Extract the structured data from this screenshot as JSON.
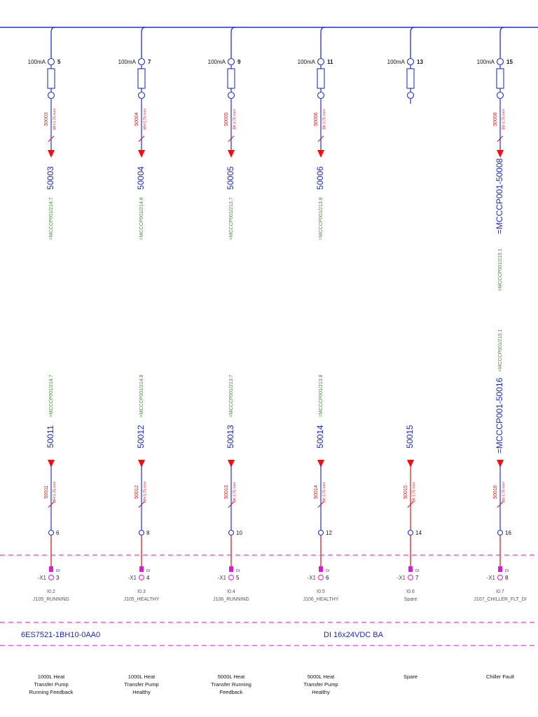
{
  "module": {
    "part_number": "6ES7521-1BH10-0AA0",
    "type": "DI 16x24VDC BA"
  },
  "channels": [
    {
      "fuse_rating": "100mA",
      "fuse_terminal": "5",
      "has_supply_path": true,
      "wire_top": "50003",
      "wire_top_color": "WH",
      "wire_top_cs": "0,75 mm²",
      "cable_top_label": "50003",
      "cable_top_ref": "=MCCCP001/214.7",
      "cable_bottom_label": "50011",
      "cable_bottom_ref": "=MCCCP001/214.7",
      "wire_bottom": "50011",
      "wire_bottom_color": "WH",
      "wire_bottom_cs": "0,75 mm²",
      "terminal": "6",
      "x1_label": "-X1",
      "x1_pin": "3",
      "io": "I0.2",
      "tag": "J105_RUNNING",
      "desc": "1000L Heat\nTransfer Pump\nRunning Feedback"
    },
    {
      "fuse_rating": "100mA",
      "fuse_terminal": "7",
      "has_supply_path": true,
      "wire_top": "50004",
      "wire_top_color": "WH",
      "wire_top_cs": "0,75 mm²",
      "cable_top_label": "50004",
      "cable_top_ref": "=MCCCP001/214.8",
      "cable_bottom_label": "50012",
      "cable_bottom_ref": "=MCCCP001/214.8",
      "wire_bottom": "50012",
      "wire_bottom_color": "WH",
      "wire_bottom_cs": "0,75 mm²",
      "terminal": "8",
      "x1_label": "-X1",
      "x1_pin": "4",
      "io": "I0.3",
      "tag": "J105_HEALTHY",
      "desc": "1000L Heat\nTransfer Pump\nHealthy"
    },
    {
      "fuse_rating": "100mA",
      "fuse_terminal": "9",
      "has_supply_path": true,
      "wire_top": "50005",
      "wire_top_color": "BK",
      "wire_top_cs": "0,75 mm²",
      "cable_top_label": "50005",
      "cable_top_ref": "=MCCCP001/213.7",
      "cable_bottom_label": "50013",
      "cable_bottom_ref": "=MCCCP001/213.7",
      "wire_bottom": "50013",
      "wire_bottom_color": "BK",
      "wire_bottom_cs": "0,75 mm²",
      "terminal": "10",
      "x1_label": "-X1",
      "x1_pin": "5",
      "io": "I0.4",
      "tag": "J106_RUNNING",
      "desc": "5000L Heat\nTransfer Running\nFeedback"
    },
    {
      "fuse_rating": "100mA",
      "fuse_terminal": "11",
      "has_supply_path": true,
      "wire_top": "50006",
      "wire_top_color": "BK",
      "wire_top_cs": "0,75 mm²",
      "cable_top_label": "50006",
      "cable_top_ref": "=MCCCP001/213.8",
      "cable_bottom_label": "50014",
      "cable_bottom_ref": "=MCCCP001/213.8",
      "wire_bottom": "50014",
      "wire_bottom_color": "BK",
      "wire_bottom_cs": "0,75 mm²",
      "terminal": "12",
      "x1_label": "-X1",
      "x1_pin": "6",
      "io": "I0.5",
      "tag": "J106_HEALTHY",
      "desc": "5000L Heat\nTransfer Pump\nHealthy"
    },
    {
      "fuse_rating": "100mA",
      "fuse_terminal": "13",
      "has_supply_path": false,
      "wire_top": "",
      "wire_top_color": "",
      "wire_top_cs": "",
      "cable_top_label": "",
      "cable_top_ref": "",
      "cable_bottom_label": "50015",
      "cable_bottom_ref": "",
      "wire_bottom": "50015",
      "wire_bottom_color": "BK",
      "wire_bottom_cs": "0,75 mm²",
      "terminal": "14",
      "x1_label": "-X1",
      "x1_pin": "7",
      "io": "I0.6",
      "tag": "Spare",
      "desc": "Spare"
    },
    {
      "fuse_rating": "100mA",
      "fuse_terminal": "15",
      "has_supply_path": true,
      "wire_top": "50008",
      "wire_top_color": "BU",
      "wire_top_cs": "0,75 mm²",
      "cable_top_label": "=MCCCP001-50008",
      "cable_top_ref": "=MCCCP001/215.1",
      "cable_bottom_label": "=MCCCP001-50016",
      "cable_bottom_ref": "=MCCCP001/215.1",
      "wire_bottom": "50016",
      "wire_bottom_color": "BU",
      "wire_bottom_cs": "0,75 mm²",
      "terminal": "16",
      "x1_label": "-X1",
      "x1_pin": "8",
      "io": "I0.7",
      "tag": "J107_CHILLER_FLT_DI",
      "desc": "Chiller Fault"
    }
  ],
  "di_marker": "DI",
  "colors": {
    "blue_wire": "#2233cc",
    "red_wire": "#cc2222",
    "arrow_red": "#ee1111",
    "ref_green": "#4a8a3a",
    "magenta": "#e040e0",
    "magenta_solid": "#d81bd8",
    "label_blue": "#1a2ab0",
    "grey": "#555555"
  }
}
